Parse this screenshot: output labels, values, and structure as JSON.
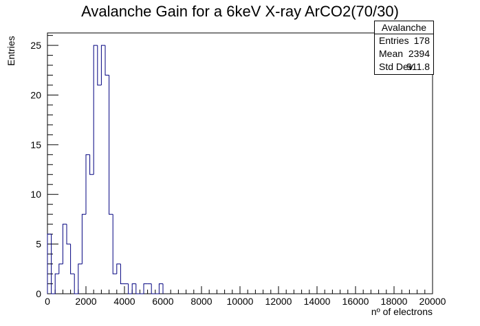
{
  "chart_data": {
    "type": "histogram",
    "title": "Avalanche Gain for a 6keV X-ray ArCO2(70/30)",
    "xlabel": "nº of electrons",
    "ylabel": "Entries",
    "xlim": [
      0,
      20000
    ],
    "ylim": [
      0,
      26.25
    ],
    "bin_width": 200,
    "line_color": "#00007f",
    "x_ticks": [
      0,
      2000,
      4000,
      6000,
      8000,
      10000,
      12000,
      14000,
      16000,
      18000,
      20000
    ],
    "x_tick_labels": [
      "0",
      "2000",
      "4000",
      "6000",
      "8000",
      "10000",
      "12000",
      "14000",
      "16000",
      "18000",
      "20000"
    ],
    "y_ticks": [
      0,
      5,
      10,
      15,
      20,
      25
    ],
    "y_tick_labels": [
      "0",
      "5",
      "10",
      "15",
      "20",
      "25"
    ],
    "counts": [
      6,
      0,
      2,
      3,
      7,
      5,
      2,
      0,
      3,
      8,
      14,
      12,
      25,
      21,
      25,
      22,
      8,
      2,
      3,
      1,
      1,
      0,
      1,
      0,
      0,
      1,
      1,
      0,
      0,
      1
    ]
  },
  "stats": {
    "name": "Avalanche",
    "rows": [
      {
        "label": "Entries",
        "value": "178"
      },
      {
        "label": "Mean",
        "value": "2394"
      },
      {
        "label": "Std Dev",
        "value": "911.8"
      }
    ]
  }
}
